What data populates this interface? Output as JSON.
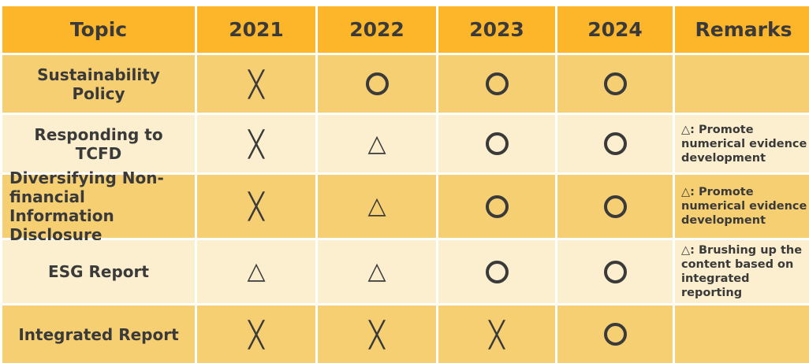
{
  "header": [
    "Topic",
    "2021",
    "2022",
    "2023",
    "2024",
    "Remarks"
  ],
  "legend": {
    "circle": "O",
    "triangle": "△",
    "cross": "╳"
  },
  "rows": [
    {
      "topic": "Sustainability Policy",
      "marks": [
        "cross",
        "circle",
        "circle",
        "circle"
      ],
      "remarks": ""
    },
    {
      "topic": "Responding to TCFD",
      "marks": [
        "cross",
        "triangle",
        "circle",
        "circle"
      ],
      "remarks": "△: Promote numerical evidence development"
    },
    {
      "topic": "Diversifying Non-financial Information Disclosure",
      "marks": [
        "cross",
        "triangle",
        "circle",
        "circle"
      ],
      "remarks": "△: Promote numerical evidence development"
    },
    {
      "topic": "ESG Report",
      "marks": [
        "triangle",
        "triangle",
        "circle",
        "circle"
      ],
      "remarks": "△: Brushing up the content based on integrated reporting"
    },
    {
      "topic": "Integrated Report",
      "marks": [
        "cross",
        "cross",
        "cross",
        "circle"
      ],
      "remarks": ""
    }
  ],
  "colors": {
    "header": "#fdb52a",
    "row_dark": "#f6cf73",
    "row_light": "#fcefcf",
    "text": "#3a3a3a"
  }
}
